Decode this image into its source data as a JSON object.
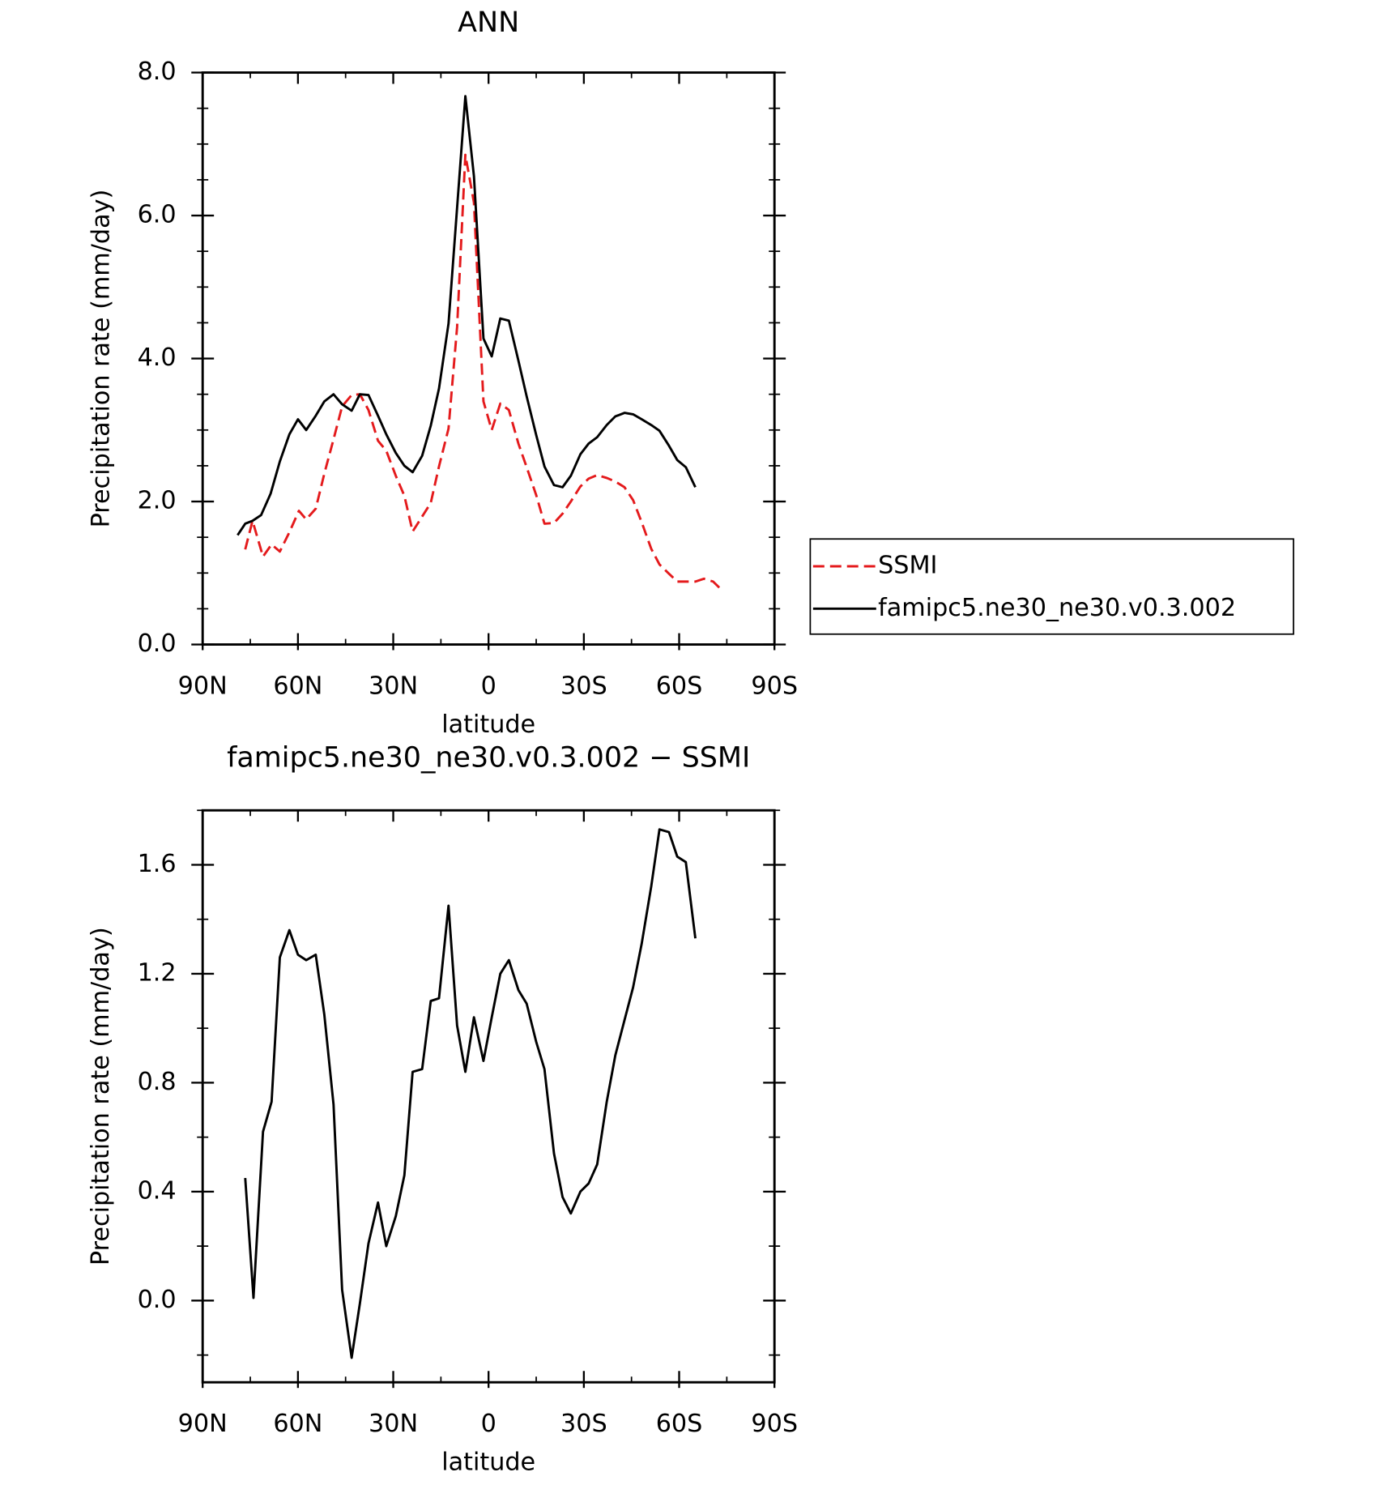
{
  "chart_data": [
    {
      "type": "line",
      "title": "ANN",
      "xlabel": "latitude",
      "ylabel": "Precipitation rate (mm/day)",
      "xlim": [
        90,
        -90
      ],
      "xticks": [
        {
          "value": 90,
          "label": "90N"
        },
        {
          "value": 60,
          "label": "60N"
        },
        {
          "value": 30,
          "label": "30N"
        },
        0,
        {
          "value": -30,
          "label": "30S"
        },
        {
          "value": -60,
          "label": "60S"
        },
        {
          "value": -90,
          "label": "90S"
        }
      ],
      "ylim": [
        0,
        8
      ],
      "yticks": [
        {
          "value": 0,
          "label": "0.0"
        },
        {
          "value": 2,
          "label": "2.0"
        },
        {
          "value": 4,
          "label": "4.0"
        },
        {
          "value": 6,
          "label": "6.0"
        },
        {
          "value": 8,
          "label": "8.0"
        }
      ],
      "legend": "right",
      "series": [
        {
          "name": "SSMI",
          "color": "#e41a1c",
          "line_style": "dashed",
          "x": [
            76.6,
            74.3,
            71.0,
            68.3,
            65.7,
            62.7,
            59.7,
            57.4,
            54.4,
            51.7,
            48.8,
            46.1,
            43.1,
            40.5,
            37.8,
            34.8,
            32.2,
            29.2,
            26.5,
            23.9,
            20.9,
            18.2,
            15.6,
            12.6,
            9.9,
            7.3,
            4.6,
            1.6,
            -1.0,
            -3.7,
            -6.4,
            -9.4,
            -12.0,
            -15.0,
            -17.6,
            -20.6,
            -23.3,
            -25.9,
            -28.9,
            -31.5,
            -34.2,
            -37.2,
            -39.9,
            -42.8,
            -45.5,
            -48.2,
            -51.2,
            -53.8,
            -56.8,
            -59.4,
            -62.1,
            -65.1,
            -67.8,
            -70.7,
            -73.7
          ],
          "values": [
            1.33,
            1.73,
            1.23,
            1.4,
            1.3,
            1.57,
            1.87,
            1.75,
            1.9,
            2.39,
            2.87,
            3.33,
            3.49,
            3.5,
            3.28,
            2.85,
            2.71,
            2.36,
            2.08,
            1.58,
            1.79,
            1.98,
            2.49,
            3.02,
            4.44,
            6.85,
            6.18,
            3.4,
            3.0,
            3.37,
            3.28,
            2.81,
            2.48,
            2.09,
            1.69,
            1.7,
            1.83,
            2.0,
            2.21,
            2.32,
            2.37,
            2.33,
            2.28,
            2.2,
            2.02,
            1.71,
            1.34,
            1.12,
            0.99,
            0.88,
            0.88,
            0.88,
            0.92,
            0.88,
            0.75
          ]
        },
        {
          "name": "famipc5.ne30_ne30.v0.3.002",
          "color": "#000000",
          "line_style": "solid",
          "x": [
            79.0,
            76.6,
            74.3,
            71.6,
            68.6,
            65.7,
            62.7,
            60.0,
            57.4,
            54.4,
            51.7,
            48.8,
            46.1,
            43.1,
            40.5,
            37.8,
            34.8,
            32.2,
            29.2,
            26.5,
            23.9,
            20.9,
            18.2,
            15.6,
            12.6,
            9.9,
            7.3,
            4.6,
            1.6,
            -1.0,
            -3.7,
            -6.4,
            -9.4,
            -12.0,
            -15.0,
            -17.6,
            -20.6,
            -23.3,
            -25.9,
            -28.9,
            -31.5,
            -34.2,
            -37.2,
            -39.9,
            -42.8,
            -45.5,
            -48.2,
            -51.2,
            -53.8,
            -56.8,
            -59.4,
            -62.1,
            -65.1
          ],
          "values": [
            1.53,
            1.69,
            1.73,
            1.81,
            2.11,
            2.56,
            2.94,
            3.15,
            3.0,
            3.2,
            3.4,
            3.5,
            3.36,
            3.27,
            3.5,
            3.49,
            3.2,
            2.94,
            2.68,
            2.5,
            2.41,
            2.64,
            3.06,
            3.58,
            4.49,
            6.11,
            7.67,
            6.55,
            4.28,
            4.03,
            4.56,
            4.53,
            3.97,
            3.47,
            2.93,
            2.49,
            2.23,
            2.2,
            2.36,
            2.66,
            2.81,
            2.9,
            3.07,
            3.19,
            3.24,
            3.22,
            3.15,
            3.07,
            2.99,
            2.78,
            2.58,
            2.48,
            2.2
          ]
        }
      ]
    },
    {
      "type": "line",
      "title": "famipc5.ne30_ne30.v0.3.002 − SSMI",
      "xlabel": "latitude",
      "ylabel": "Precipitation rate (mm/day)",
      "xlim": [
        90,
        -90
      ],
      "xticks": [
        {
          "value": 90,
          "label": "90N"
        },
        {
          "value": 60,
          "label": "60N"
        },
        {
          "value": 30,
          "label": "30N"
        },
        0,
        {
          "value": -30,
          "label": "30S"
        },
        {
          "value": -60,
          "label": "60S"
        },
        {
          "value": -90,
          "label": "90S"
        }
      ],
      "ylim": [
        -0.3,
        1.8
      ],
      "yticks": [
        {
          "value": 0,
          "label": "0.0"
        },
        0.4,
        0.8,
        1.2,
        1.6
      ],
      "series": [
        {
          "color": "#000000",
          "line_style": "solid",
          "x": [
            76.6,
            74.0,
            71.0,
            68.3,
            65.7,
            62.7,
            60.0,
            57.4,
            54.4,
            51.7,
            48.8,
            46.1,
            43.1,
            40.5,
            37.8,
            34.8,
            32.2,
            29.2,
            26.5,
            23.9,
            20.9,
            18.2,
            15.6,
            12.6,
            9.9,
            7.3,
            4.6,
            1.6,
            -1.0,
            -3.7,
            -6.4,
            -9.4,
            -12.0,
            -15.0,
            -17.6,
            -20.6,
            -23.3,
            -25.9,
            -28.9,
            -31.5,
            -34.2,
            -37.2,
            -39.9,
            -42.8,
            -45.5,
            -48.2,
            -51.2,
            -53.8,
            -56.8,
            -59.4,
            -62.1,
            -65.1
          ],
          "values": [
            0.45,
            0.01,
            0.62,
            0.73,
            1.26,
            1.36,
            1.27,
            1.25,
            1.27,
            1.05,
            0.72,
            0.04,
            -0.21,
            -0.01,
            0.21,
            0.36,
            0.2,
            0.31,
            0.46,
            0.84,
            0.85,
            1.1,
            1.11,
            1.45,
            1.01,
            0.84,
            1.04,
            0.88,
            1.04,
            1.2,
            1.25,
            1.14,
            1.09,
            0.95,
            0.85,
            0.54,
            0.38,
            0.32,
            0.4,
            0.43,
            0.5,
            0.73,
            0.9,
            1.03,
            1.15,
            1.31,
            1.52,
            1.73,
            1.72,
            1.63,
            1.61,
            1.33
          ]
        }
      ]
    }
  ]
}
